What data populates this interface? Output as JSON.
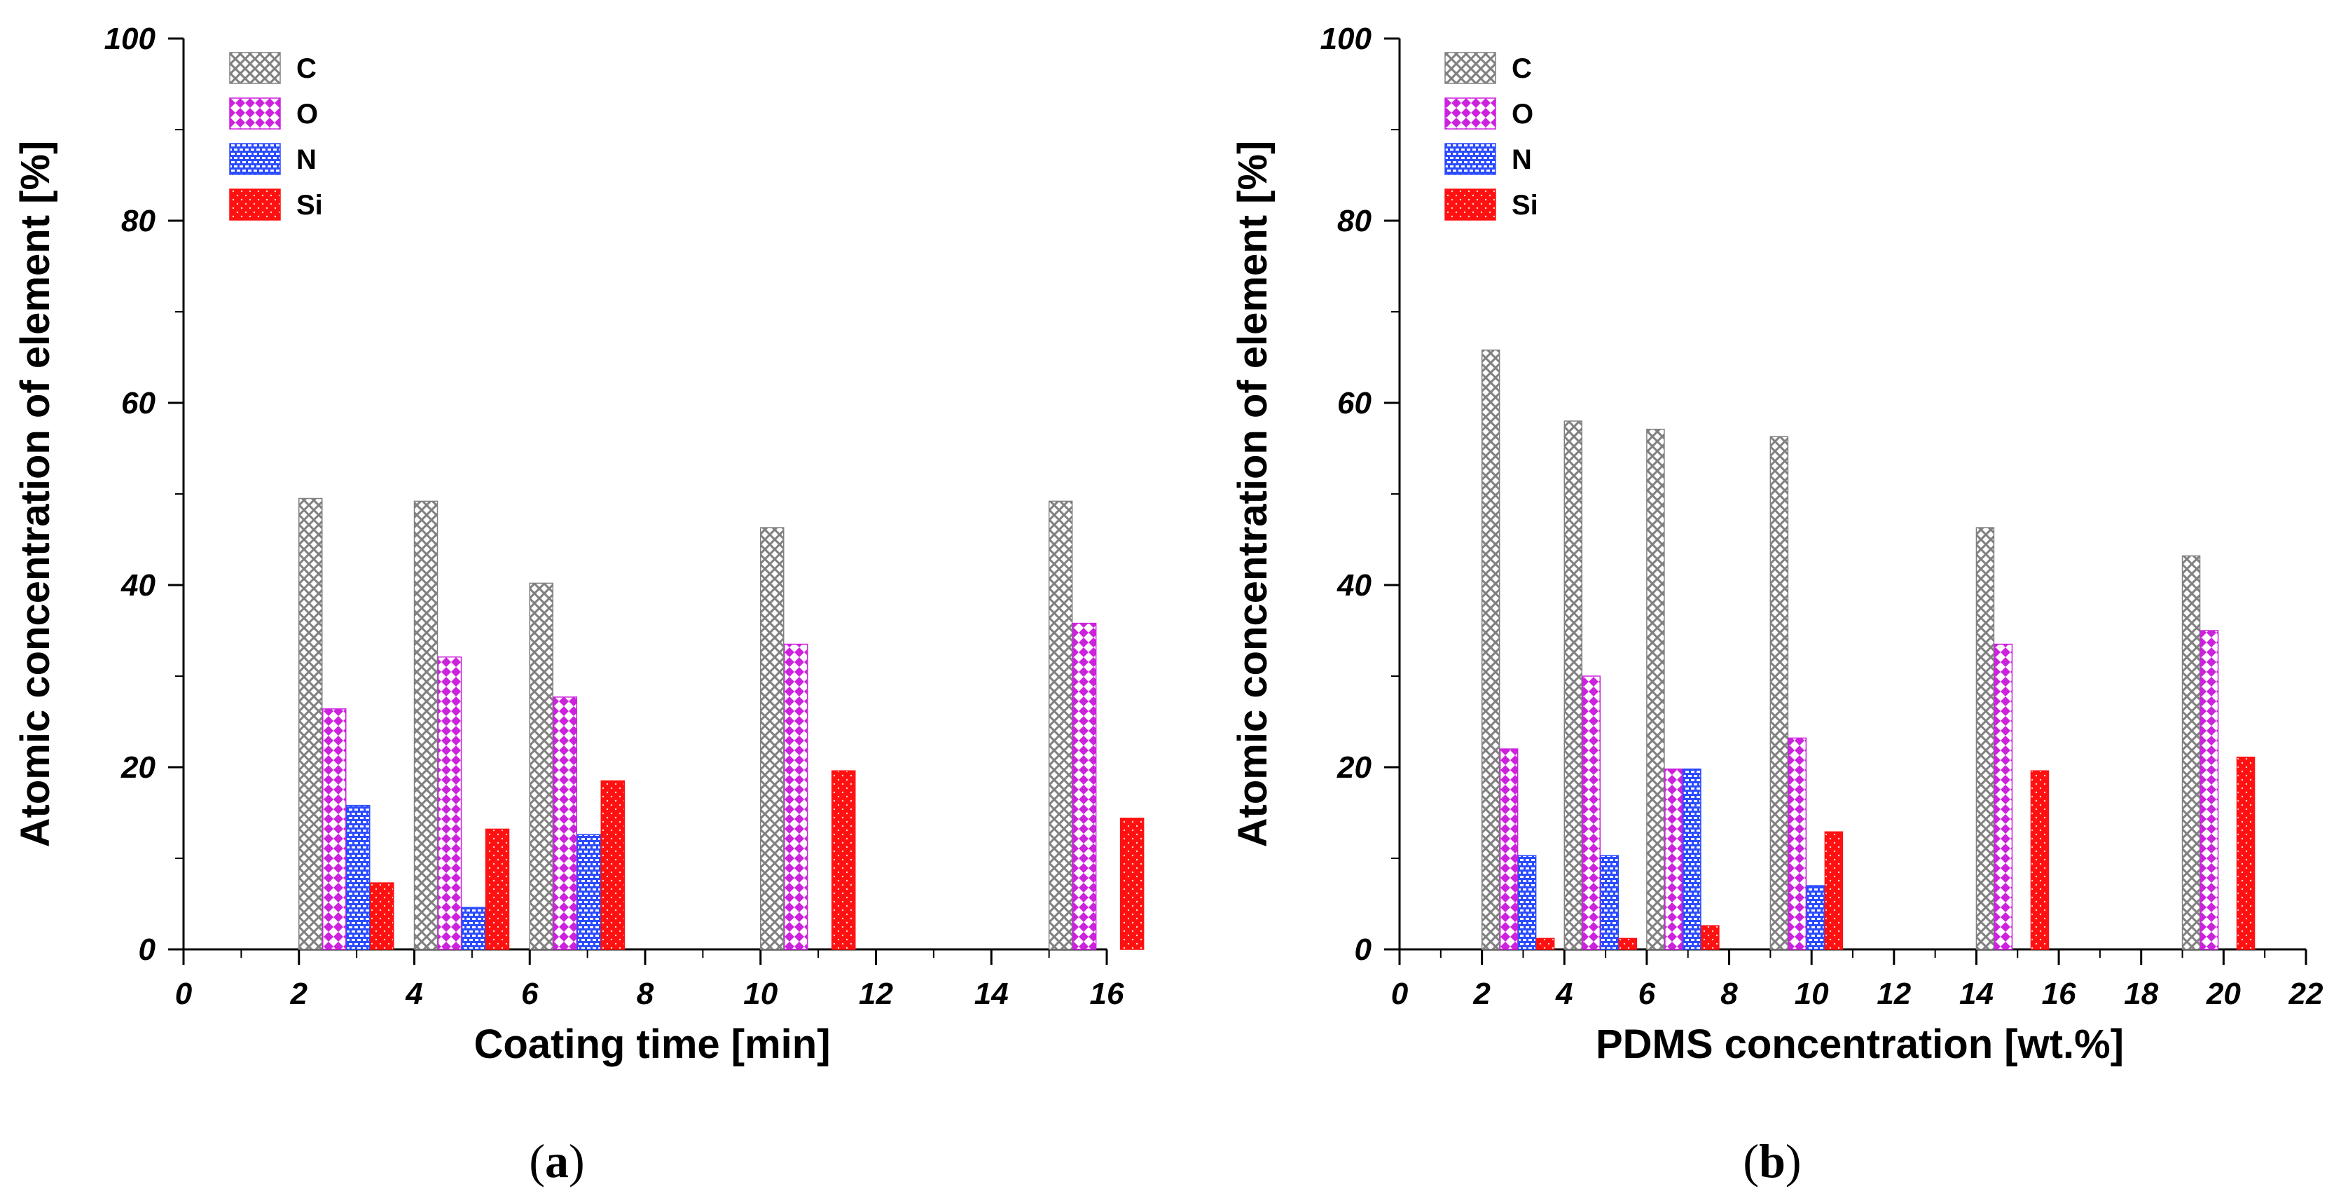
{
  "colors": {
    "C": "#808080",
    "O": "#cc22dd",
    "N": "#2b4bff",
    "Si": "#ff1111"
  },
  "panels": [
    {
      "label": "(a)",
      "label_prefix": "(",
      "label_letter": "a",
      "label_suffix": ")"
    },
    {
      "label": "(b)",
      "label_prefix": "(",
      "label_letter": "b",
      "label_suffix": ")"
    }
  ],
  "chart_data": [
    {
      "type": "bar",
      "xlabel": "Coating time [min]",
      "ylabel": "Atomic concentration of element [%]",
      "xlim": [
        0,
        16
      ],
      "ylim": [
        0,
        100
      ],
      "xticks": [
        0,
        2,
        4,
        6,
        8,
        10,
        12,
        14,
        16
      ],
      "yticks": [
        0,
        20,
        40,
        60,
        80,
        100
      ],
      "legend": [
        "C",
        "O",
        "N",
        "Si"
      ],
      "legend_position": "top-left",
      "categories": [
        2,
        4,
        6,
        10,
        15
      ],
      "series": [
        {
          "name": "C",
          "values": [
            49.5,
            49.2,
            40.2,
            46.3,
            49.2
          ]
        },
        {
          "name": "O",
          "values": [
            26.4,
            32.1,
            27.7,
            33.5,
            35.8
          ]
        },
        {
          "name": "N",
          "values": [
            15.8,
            4.6,
            12.6,
            0,
            0
          ]
        },
        {
          "name": "Si",
          "values": [
            7.3,
            13.2,
            18.5,
            19.6,
            14.4
          ]
        }
      ]
    },
    {
      "type": "bar",
      "xlabel": "PDMS concentration [wt.%]",
      "ylabel": "Atomic concentration of element [%]",
      "xlim": [
        0,
        22
      ],
      "ylim": [
        0,
        100
      ],
      "xticks": [
        0,
        2,
        4,
        6,
        8,
        10,
        12,
        14,
        16,
        18,
        20,
        22
      ],
      "yticks": [
        0,
        20,
        40,
        60,
        80,
        100
      ],
      "legend": [
        "C",
        "O",
        "N",
        "Si"
      ],
      "legend_position": "top-left",
      "categories": [
        2,
        4,
        6,
        9,
        14,
        19
      ],
      "series": [
        {
          "name": "C",
          "values": [
            65.8,
            58.0,
            57.1,
            56.3,
            46.3,
            43.2
          ]
        },
        {
          "name": "O",
          "values": [
            22.0,
            30.0,
            19.8,
            23.2,
            33.5,
            35.0
          ]
        },
        {
          "name": "N",
          "values": [
            10.3,
            10.3,
            19.8,
            7.0,
            0,
            0
          ]
        },
        {
          "name": "Si",
          "values": [
            1.2,
            1.2,
            2.6,
            12.9,
            19.6,
            21.1
          ]
        }
      ]
    }
  ]
}
